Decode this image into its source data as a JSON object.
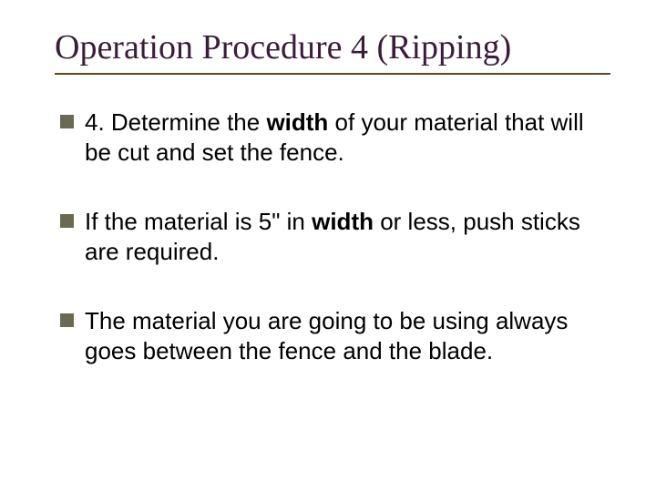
{
  "slide": {
    "title": "Operation Procedure 4 (Ripping)",
    "title_color": "#3a1d3a",
    "title_fontsize": 38,
    "underline_color": "#5c4a1a",
    "bullet_marker_color": "#6a6a52",
    "bullet_marker_size": 15,
    "body_fontsize": 26,
    "body_color": "#000000",
    "background_color": "#ffffff",
    "bullets": [
      {
        "pre": "4. Determine the ",
        "bold": "width",
        "post": " of your material that will be cut and set the fence."
      },
      {
        "pre": "If the material is 5\" in ",
        "bold": "width",
        "post": " or less, push sticks are required."
      },
      {
        "pre": "The material you are going to be using always goes between the fence and the blade.",
        "bold": "",
        "post": ""
      }
    ]
  }
}
